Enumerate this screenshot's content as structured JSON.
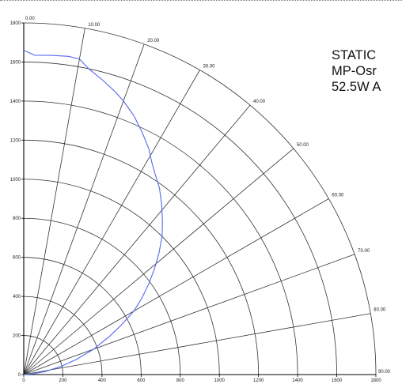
{
  "info": {
    "line1": "STATIC",
    "line2": "MP-Osr",
    "line3": "52.5W A"
  },
  "chart_data": {
    "type": "line",
    "polar": true,
    "title": "",
    "radial_ticks": [
      0,
      200,
      400,
      600,
      800,
      1000,
      1200,
      1400,
      1600,
      1800
    ],
    "radial_tick_labels_left": [
      "0",
      "200",
      "400",
      "600",
      "800",
      "1000",
      "1200",
      "1400",
      "1600",
      "1800"
    ],
    "radial_tick_labels_bottom": [
      "0",
      "200",
      "400",
      "600",
      "800",
      "1000",
      "1200",
      "1400",
      "1600",
      "1800"
    ],
    "rmax": 1800,
    "angle_ticks": [
      0,
      10,
      20,
      30,
      40,
      50,
      60,
      70,
      80,
      90
    ],
    "angle_labels": [
      "0.00",
      "10.00",
      "20.00",
      "30.00",
      "40.00",
      "50.00",
      "60.00",
      "70.00",
      "80.00",
      "90.00"
    ],
    "grid": true,
    "series": [
      {
        "color": "#5566ee",
        "angle": [
          0,
          2,
          5,
          8,
          10,
          12,
          15,
          18,
          20,
          23,
          26,
          29,
          31,
          33,
          36,
          39,
          42,
          45,
          48,
          51,
          54,
          57,
          60,
          63,
          66,
          70,
          74,
          78,
          82,
          86,
          90
        ],
        "r": [
          1660,
          1635,
          1640,
          1645,
          1640,
          1600,
          1560,
          1520,
          1490,
          1440,
          1380,
          1320,
          1270,
          1230,
          1180,
          1120,
          1060,
          1000,
          930,
          860,
          790,
          720,
          650,
          560,
          480,
          380,
          280,
          190,
          110,
          50,
          0
        ]
      }
    ]
  }
}
